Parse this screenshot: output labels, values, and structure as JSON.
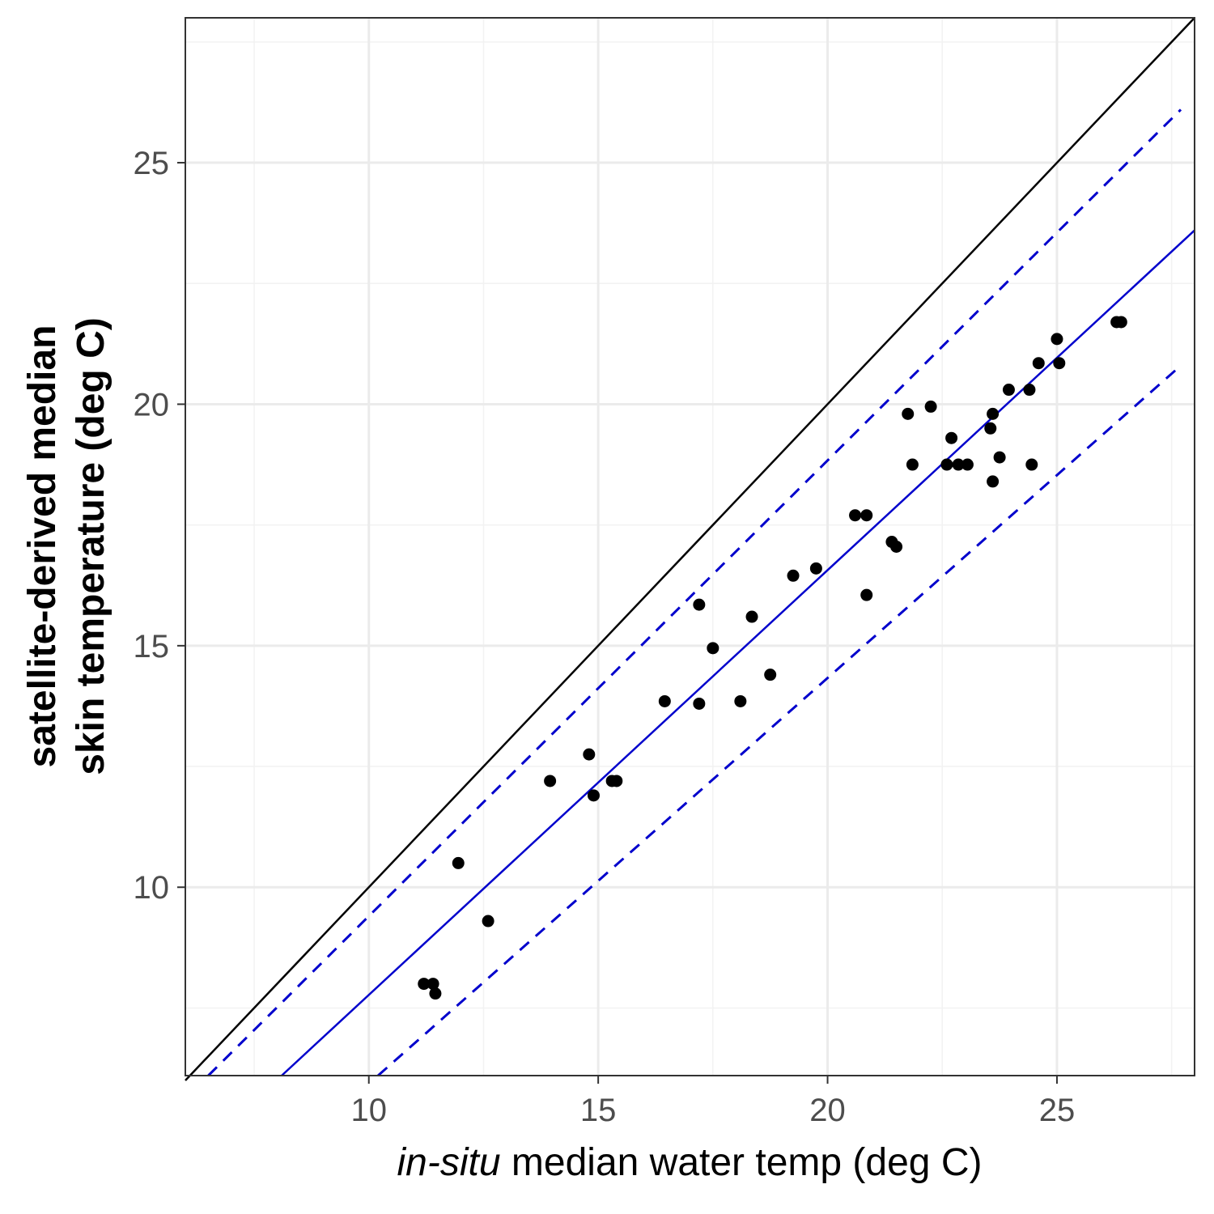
{
  "chart_data": {
    "type": "scatter",
    "xlabel_italic": "in-situ",
    "xlabel_rest": " median water temp (deg C)",
    "ylabel_lines": [
      "satellite-derived median",
      "skin temperature (deg C)"
    ],
    "xlim": [
      6,
      28
    ],
    "ylim": [
      6.1,
      28
    ],
    "x_ticks": [
      10,
      15,
      20,
      25
    ],
    "y_ticks": [
      10,
      15,
      20,
      25
    ],
    "x_minor": [
      7.5,
      12.5,
      17.5,
      22.5,
      27.5
    ],
    "y_minor": [
      7.5,
      12.5,
      17.5,
      22.5,
      27.5
    ],
    "grid": true,
    "point_color": "#000000",
    "line_color": "#0000cc",
    "points": [
      {
        "x": 11.2,
        "y": 8.0
      },
      {
        "x": 11.4,
        "y": 8.0
      },
      {
        "x": 11.45,
        "y": 7.8
      },
      {
        "x": 11.95,
        "y": 10.5
      },
      {
        "x": 12.6,
        "y": 9.3
      },
      {
        "x": 13.95,
        "y": 12.2
      },
      {
        "x": 14.8,
        "y": 12.75
      },
      {
        "x": 14.9,
        "y": 11.9
      },
      {
        "x": 15.3,
        "y": 12.2
      },
      {
        "x": 15.4,
        "y": 12.2
      },
      {
        "x": 16.45,
        "y": 13.85
      },
      {
        "x": 17.2,
        "y": 15.85
      },
      {
        "x": 17.2,
        "y": 13.8
      },
      {
        "x": 17.5,
        "y": 14.95
      },
      {
        "x": 18.1,
        "y": 13.85
      },
      {
        "x": 18.35,
        "y": 15.6
      },
      {
        "x": 18.75,
        "y": 14.4
      },
      {
        "x": 19.25,
        "y": 16.45
      },
      {
        "x": 19.75,
        "y": 16.6
      },
      {
        "x": 20.6,
        "y": 17.7
      },
      {
        "x": 20.85,
        "y": 16.05
      },
      {
        "x": 20.85,
        "y": 17.7
      },
      {
        "x": 21.4,
        "y": 17.15
      },
      {
        "x": 21.5,
        "y": 17.05
      },
      {
        "x": 21.75,
        "y": 19.8
      },
      {
        "x": 21.85,
        "y": 18.75
      },
      {
        "x": 22.25,
        "y": 19.95
      },
      {
        "x": 22.6,
        "y": 18.75
      },
      {
        "x": 22.7,
        "y": 19.3
      },
      {
        "x": 22.85,
        "y": 18.75
      },
      {
        "x": 23.05,
        "y": 18.75
      },
      {
        "x": 23.55,
        "y": 19.5
      },
      {
        "x": 23.6,
        "y": 19.8
      },
      {
        "x": 23.6,
        "y": 18.4
      },
      {
        "x": 23.75,
        "y": 18.9
      },
      {
        "x": 23.95,
        "y": 20.3
      },
      {
        "x": 24.4,
        "y": 20.3
      },
      {
        "x": 24.45,
        "y": 18.75
      },
      {
        "x": 24.6,
        "y": 20.85
      },
      {
        "x": 25.0,
        "y": 21.35
      },
      {
        "x": 25.05,
        "y": 20.85
      },
      {
        "x": 26.3,
        "y": 21.7
      },
      {
        "x": 26.4,
        "y": 21.7
      }
    ],
    "lines": [
      {
        "kind": "identity",
        "x": [
          6,
          28
        ],
        "y": [
          6,
          28
        ],
        "color": "#000000",
        "dash": false
      },
      {
        "kind": "fit",
        "x": [
          8.1,
          28
        ],
        "y": [
          6.1,
          23.6
        ],
        "color": "#0000cc",
        "dash": false
      },
      {
        "kind": "upper",
        "x": [
          6.5,
          27.7
        ],
        "y": [
          6.1,
          26.1
        ],
        "color": "#0000cc",
        "dash": true
      },
      {
        "kind": "lower",
        "x": [
          10.2,
          27.7
        ],
        "y": [
          6.1,
          20.8
        ],
        "color": "#0000cc",
        "dash": true
      }
    ]
  }
}
